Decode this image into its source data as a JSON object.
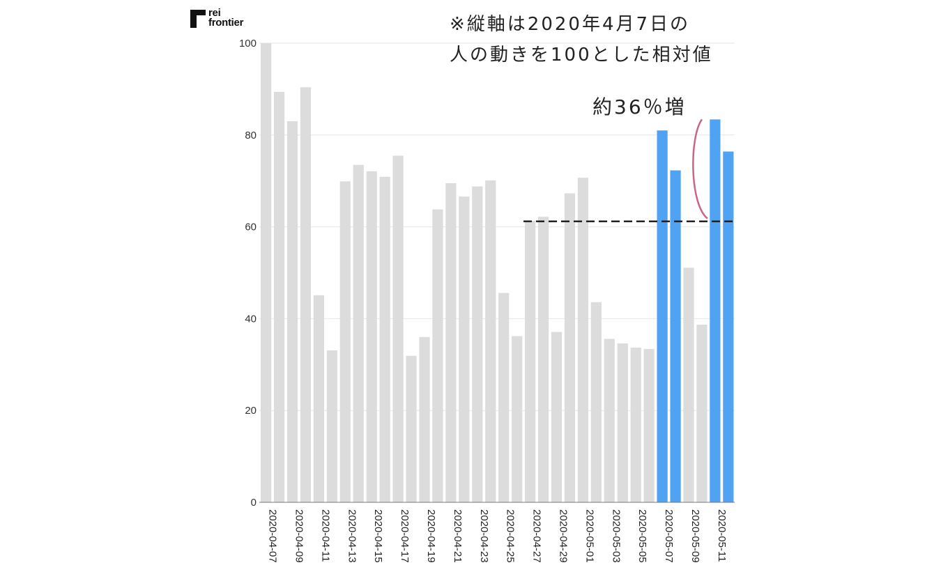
{
  "logo": {
    "line1": "rei",
    "line2": "frontier"
  },
  "annotations": {
    "note_line1": "※縦軸は2020年4月7日の",
    "note_line2": "人の動きを100とした相対値",
    "increase_label": "約36％増"
  },
  "colors": {
    "base_bar": "#dcdcdc",
    "highlight_bar": "#4fa3f2",
    "reference_line": "#222222",
    "bracket": "#c8668a",
    "grid": "#e6e6e6"
  },
  "chart_data": {
    "type": "bar",
    "categories": [
      "2020-04-07",
      "2020-04-08",
      "2020-04-09",
      "2020-04-10",
      "2020-04-11",
      "2020-04-12",
      "2020-04-13",
      "2020-04-14",
      "2020-04-15",
      "2020-04-16",
      "2020-04-17",
      "2020-04-18",
      "2020-04-19",
      "2020-04-20",
      "2020-04-21",
      "2020-04-22",
      "2020-04-23",
      "2020-04-24",
      "2020-04-25",
      "2020-04-26",
      "2020-04-27",
      "2020-04-28",
      "2020-04-29",
      "2020-04-30",
      "2020-05-01",
      "2020-05-02",
      "2020-05-03",
      "2020-05-04",
      "2020-05-05",
      "2020-05-06",
      "2020-05-07",
      "2020-05-08",
      "2020-05-09",
      "2020-05-10",
      "2020-05-11",
      "2020-05-12"
    ],
    "values": [
      100,
      89.4,
      83,
      90.4,
      45.1,
      33.1,
      69.9,
      73.5,
      72.1,
      70.9,
      75.5,
      31.9,
      36,
      63.8,
      69.5,
      66.6,
      68.8,
      70.1,
      45.6,
      36.2,
      61.3,
      62.2,
      37.1,
      67.3,
      70.7,
      43.6,
      35.6,
      34.6,
      33.7,
      33.4,
      81,
      72.3,
      51.1,
      38.7,
      83.4,
      76.4
    ],
    "highlighted": [
      "2020-05-07",
      "2020-05-08",
      "2020-05-11",
      "2020-05-12"
    ],
    "x_tick_labels": [
      "2020-04-07",
      "2020-04-09",
      "2020-04-11",
      "2020-04-13",
      "2020-04-15",
      "2020-04-17",
      "2020-04-19",
      "2020-04-21",
      "2020-04-23",
      "2020-04-25",
      "2020-04-27",
      "2020-04-29",
      "2020-05-01",
      "2020-05-03",
      "2020-05-05",
      "2020-05-07",
      "2020-05-09",
      "2020-05-11"
    ],
    "y_ticks": [
      0,
      20,
      40,
      60,
      80,
      100
    ],
    "ylim": [
      0,
      100
    ],
    "reference_line": {
      "value": 61.2,
      "from": "2020-04-27",
      "to": "2020-05-12"
    },
    "increase_bracket": {
      "from_value": 61.2,
      "to_value": 83.4
    },
    "grid": true,
    "title": "",
    "xlabel": "",
    "ylabel": ""
  }
}
